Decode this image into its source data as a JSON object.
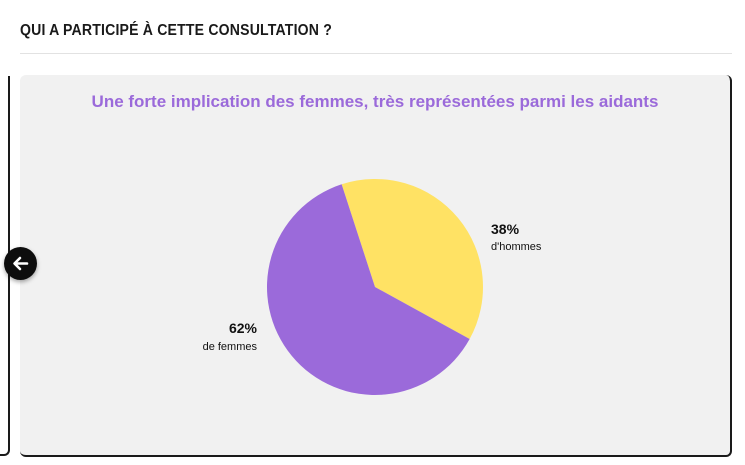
{
  "section": {
    "title": "QUI A PARTICIPÉ À CETTE CONSULTATION ?"
  },
  "colors": {
    "accent": "#9b6ada",
    "slice_women": "#9b6ada",
    "slice_men": "#ffe264",
    "card_background": "#f1f1f1"
  },
  "navigation": {
    "prev_icon": "arrow-left-icon"
  },
  "chart_data": {
    "type": "pie",
    "title": "Une forte implication des femmes, très représentées parmi les aidants",
    "slices": [
      {
        "value": 38,
        "pct_label": "38%",
        "label": "d'hommes",
        "color": "#ffe264"
      },
      {
        "value": 62,
        "pct_label": "62%",
        "label": "de femmes",
        "color": "#9b6ada"
      }
    ]
  }
}
